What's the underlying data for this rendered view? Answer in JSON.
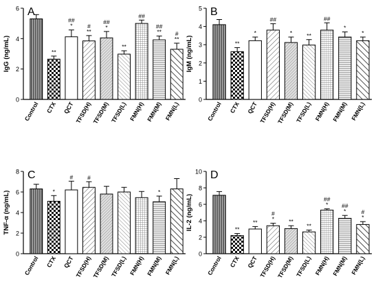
{
  "figure": {
    "panels": [
      {
        "letter": "A",
        "type": "bar",
        "ylabel": "IgG (ng/mL)",
        "ylim": [
          0,
          6
        ],
        "yticks": [
          0,
          2,
          4,
          6
        ],
        "categories": [
          "Control",
          "CTX",
          "QCT",
          "TFSD(H)",
          "TFSD(M)",
          "TFSD(L)",
          "FMN(H)",
          "FMN(M)",
          "FMN(L)"
        ],
        "values": [
          5.3,
          2.65,
          4.12,
          3.85,
          4.05,
          2.98,
          5.0,
          3.92,
          3.3
        ],
        "errors": [
          0.28,
          0.2,
          0.45,
          0.35,
          0.42,
          0.22,
          0.22,
          0.25,
          0.4
        ],
        "annotations": [
          [],
          [
            "**"
          ],
          [
            "##",
            "*"
          ],
          [
            "#",
            "**"
          ],
          [
            "##",
            "*"
          ],
          [
            "**"
          ],
          [
            "##"
          ],
          [
            "##",
            "**"
          ],
          [
            "#",
            "**"
          ]
        ]
      },
      {
        "letter": "B",
        "type": "bar",
        "ylabel": "IgM (ng/mL)",
        "ylim": [
          0,
          5
        ],
        "yticks": [
          0,
          1,
          2,
          3,
          4,
          5
        ],
        "categories": [
          "Control",
          "CTX",
          "QCT",
          "TFSD(H)",
          "TFSD(M)",
          "TFSD(L)",
          "FMN(H)",
          "FMN(M)",
          "FMN(L)"
        ],
        "values": [
          4.1,
          2.62,
          3.22,
          3.8,
          3.12,
          2.98,
          3.8,
          3.42,
          3.22
        ],
        "errors": [
          0.28,
          0.22,
          0.2,
          0.35,
          0.3,
          0.3,
          0.4,
          0.28,
          0.2
        ],
        "annotations": [
          [],
          [
            "**"
          ],
          [
            "*"
          ],
          [
            "##"
          ],
          [
            "*"
          ],
          [
            "**"
          ],
          [
            "##"
          ],
          [
            "*"
          ],
          [
            "*"
          ]
        ]
      },
      {
        "letter": "C",
        "type": "bar",
        "ylabel": "TNF-α (ng/mL)",
        "ylim": [
          0,
          8
        ],
        "yticks": [
          0,
          2,
          4,
          6,
          8
        ],
        "categories": [
          "Control",
          "CTX",
          "QCT",
          "TFSD(H)",
          "TFSD(M)",
          "TFSD(L)",
          "FMN(H)",
          "FMN(M)",
          "FMN(L)"
        ],
        "values": [
          6.3,
          5.1,
          6.2,
          6.45,
          5.8,
          6.0,
          5.45,
          5.05,
          6.3
        ],
        "errors": [
          0.45,
          0.55,
          0.85,
          0.55,
          0.75,
          0.45,
          0.6,
          0.55,
          1.0
        ],
        "annotations": [
          [],
          [
            "*"
          ],
          [
            "#"
          ],
          [
            "#"
          ],
          [],
          [],
          [],
          [
            "*"
          ],
          []
        ]
      },
      {
        "letter": "D",
        "type": "bar",
        "ylabel": "IL-2 (ng/mL)",
        "ylim": [
          0,
          10
        ],
        "yticks": [
          0,
          2,
          4,
          6,
          8,
          10
        ],
        "categories": [
          "Control",
          "CTX",
          "QCT",
          "TFSD(H)",
          "TFSD(M)",
          "TFSD(L)",
          "FMN(H)",
          "FMN(M)",
          "FMN(L)"
        ],
        "values": [
          7.1,
          2.2,
          3.0,
          3.4,
          3.05,
          2.65,
          5.3,
          4.3,
          3.55
        ],
        "errors": [
          0.45,
          0.25,
          0.3,
          0.3,
          0.35,
          0.22,
          0.15,
          0.35,
          0.35
        ],
        "annotations": [
          [],
          [
            "**"
          ],
          [
            "**"
          ],
          [
            "#",
            "*"
          ],
          [
            "**"
          ],
          [
            "**"
          ],
          [
            "##",
            "*"
          ],
          [
            "##",
            "*"
          ],
          [
            "#",
            "*"
          ]
        ]
      }
    ],
    "bar_styles": [
      {
        "fill": "#888888",
        "pattern": "vlines"
      },
      {
        "fill": "#ffffff",
        "pattern": "checker"
      },
      {
        "fill": "#ffffff",
        "pattern": "none"
      },
      {
        "fill": "#ffffff",
        "pattern": "diag"
      },
      {
        "fill": "#dddddd",
        "pattern": "diag-dense"
      },
      {
        "fill": "#ffffff",
        "pattern": "diag-alt"
      },
      {
        "fill": "#ffffff",
        "pattern": "grid"
      },
      {
        "fill": "#ffffff",
        "pattern": "hlines"
      },
      {
        "fill": "#ffffff",
        "pattern": "diag-wide"
      }
    ]
  }
}
